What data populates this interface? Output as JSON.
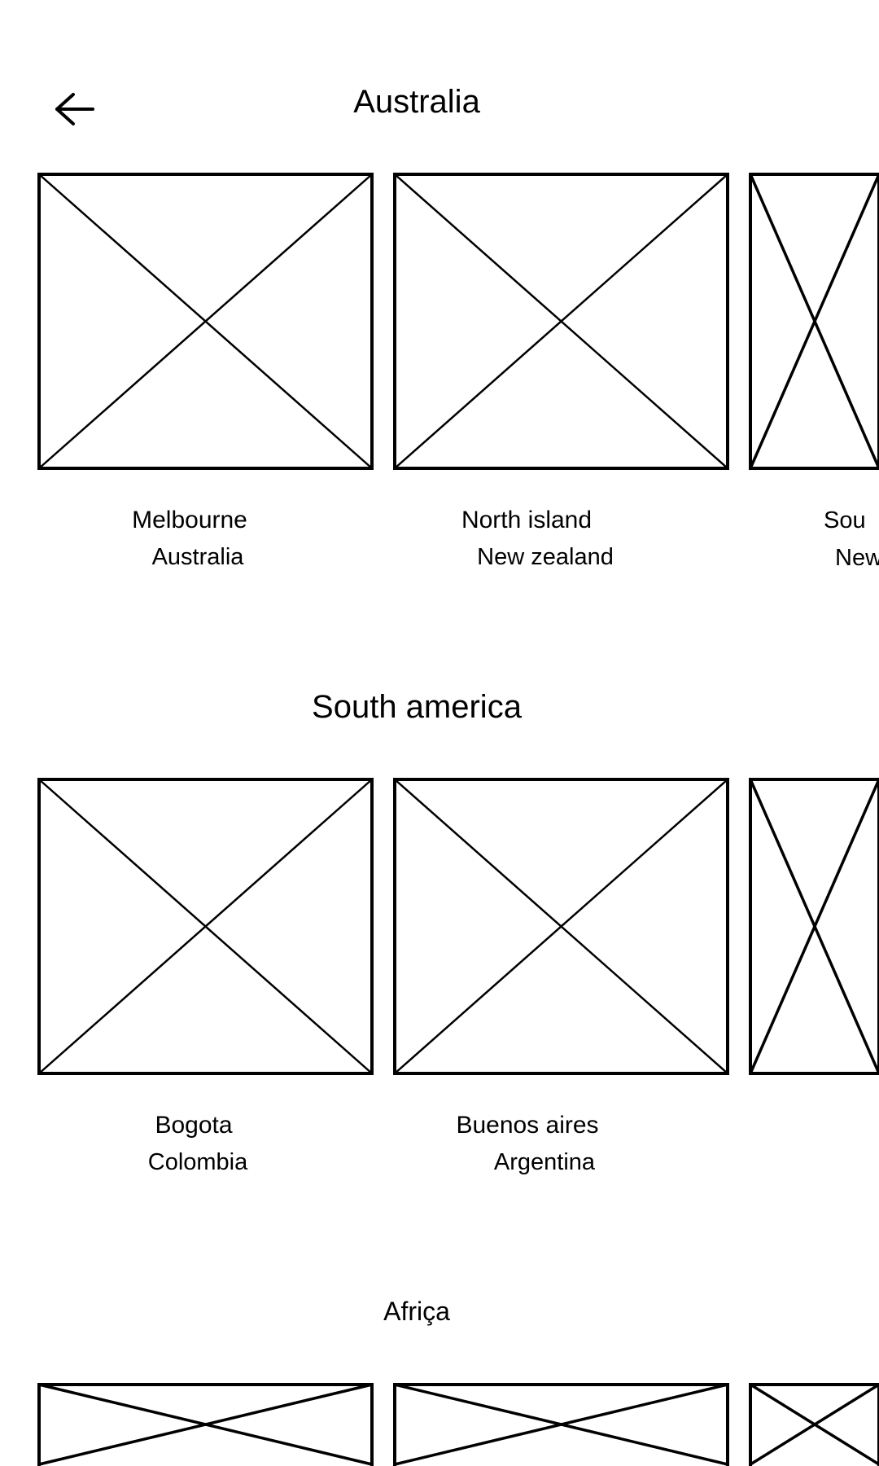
{
  "header": {
    "back_icon": "arrow-left-icon"
  },
  "sections": [
    {
      "title": "Australia",
      "cards": [
        {
          "image": "image-placeholder",
          "city": "Melbourne",
          "country": "Australia"
        },
        {
          "image": "image-placeholder",
          "city": "North island",
          "country": "New zealand"
        },
        {
          "image": "image-placeholder",
          "city": "Sou",
          "country": "New"
        }
      ]
    },
    {
      "title": "South america",
      "cards": [
        {
          "image": "image-placeholder",
          "city": "Bogota",
          "country": "Colombia"
        },
        {
          "image": "image-placeholder",
          "city": "Buenos aires",
          "country": "Argentina"
        },
        {
          "image": "image-placeholder"
        }
      ]
    },
    {
      "title": "Afriça",
      "cards": [
        {
          "image": "image-placeholder"
        },
        {
          "image": "image-placeholder"
        },
        {
          "image": "image-placeholder"
        }
      ]
    }
  ]
}
